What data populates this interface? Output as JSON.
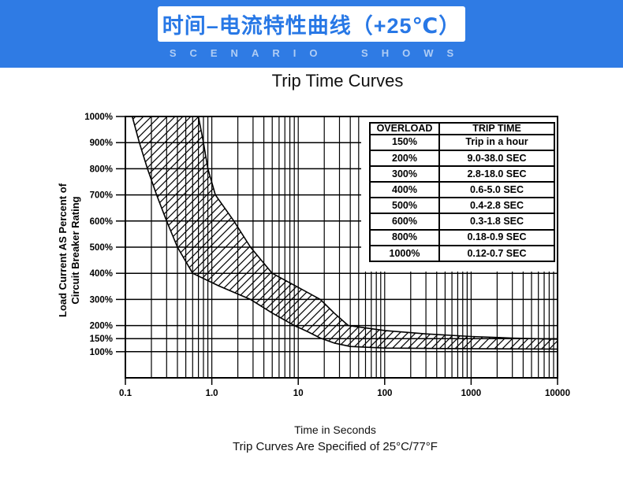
{
  "colors": {
    "banner_blue": "#2F7BE4",
    "banner_title_blue": "#2878E6",
    "banner_subtitle_blue": "rgba(255,255,255,0.62)",
    "line_black": "#000000"
  },
  "header": {
    "title": "时间–电流特性曲线（+25℃）",
    "subtitle": "SCENARIO SHOWS"
  },
  "chart": {
    "title": "Trip Time Curves",
    "x_caption": "Time in Seconds",
    "footnote": "Trip Curves Are Specified of 25°C/77°F"
  },
  "overload_table": {
    "headers": [
      "OVERLOAD",
      "TRIP TIME"
    ],
    "rows": [
      [
        "150%",
        "Trip in a hour"
      ],
      [
        "200%",
        "9.0-38.0 SEC"
      ],
      [
        "300%",
        "2.8-18.0 SEC"
      ],
      [
        "400%",
        "0.6-5.0 SEC"
      ],
      [
        "500%",
        "0.4-2.8 SEC"
      ],
      [
        "600%",
        "0.3-1.8 SEC"
      ],
      [
        "800%",
        "0.18-0.9 SEC"
      ],
      [
        "1000%",
        "0.12-0.7 SEC"
      ]
    ]
  },
  "chart_data": {
    "type": "area",
    "title": "Trip Time Curves",
    "xlabel": "Time in Seconds",
    "ylabel_line1": "Load Current AS Percent of",
    "ylabel_line2": "Circuit Breaker Rating",
    "x_scale": "log",
    "xlim": [
      0.1,
      10000
    ],
    "ylim_percent": [
      0,
      1000
    ],
    "grid": true,
    "legend": false,
    "band_fill": "diagonal-hatch",
    "x_ticks": [
      {
        "value": 0.1,
        "label": "0.1"
      },
      {
        "value": 1,
        "label": "1.0"
      },
      {
        "value": 10,
        "label": "10"
      },
      {
        "value": 100,
        "label": "100"
      },
      {
        "value": 1000,
        "label": "1000"
      },
      {
        "value": 10000,
        "label": "10000"
      }
    ],
    "y_ticks": [
      {
        "value": 1000,
        "label": "1000%"
      },
      {
        "value": 900,
        "label": "900%"
      },
      {
        "value": 800,
        "label": "800%"
      },
      {
        "value": 700,
        "label": "700%"
      },
      {
        "value": 600,
        "label": "600%"
      },
      {
        "value": 500,
        "label": "500%"
      },
      {
        "value": 400,
        "label": "400%"
      },
      {
        "value": 300,
        "label": "300%"
      },
      {
        "value": 200,
        "label": "200%"
      },
      {
        "value": 150,
        "label": "150%"
      },
      {
        "value": 100,
        "label": "100%"
      }
    ],
    "series": [
      {
        "name": "min-trip-time-curve",
        "points": [
          [
            0.12,
            1000
          ],
          [
            0.145,
            900
          ],
          [
            0.18,
            800
          ],
          [
            0.23,
            700
          ],
          [
            0.3,
            600
          ],
          [
            0.4,
            500
          ],
          [
            0.6,
            400
          ],
          [
            1.2,
            352
          ],
          [
            2.8,
            300
          ],
          [
            5.0,
            248
          ],
          [
            9.0,
            200
          ],
          [
            13,
            176
          ],
          [
            18,
            152
          ],
          [
            26,
            133
          ],
          [
            40,
            120
          ],
          [
            100,
            114
          ],
          [
            500,
            112
          ],
          [
            10000,
            110
          ]
        ]
      },
      {
        "name": "max-trip-time-curve",
        "points": [
          [
            0.7,
            1000
          ],
          [
            0.8,
            900
          ],
          [
            0.9,
            800
          ],
          [
            1.1,
            700
          ],
          [
            1.8,
            600
          ],
          [
            2.8,
            500
          ],
          [
            5.0,
            400
          ],
          [
            9.5,
            350
          ],
          [
            18,
            300
          ],
          [
            26,
            248
          ],
          [
            38,
            200
          ],
          [
            100,
            181
          ],
          [
            300,
            168
          ],
          [
            1000,
            158
          ],
          [
            3000,
            152
          ],
          [
            10000,
            148
          ]
        ]
      }
    ]
  }
}
